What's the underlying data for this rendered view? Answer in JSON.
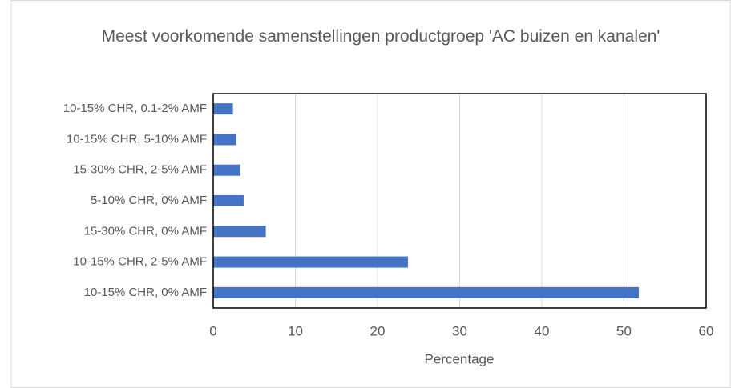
{
  "chart_data": {
    "type": "bar",
    "orientation": "horizontal",
    "title": "Meest voorkomende samenstellingen productgroep 'AC buizen en kanalen'",
    "x_label": "Percentage",
    "categories": [
      "10-15% CHR, 0.1-2% AMF",
      "10-15% CHR, 5-10% AMF",
      "15-30% CHR, 2-5% AMF",
      "5-10% CHR, 0% AMF",
      "15-30% CHR, 0% AMF",
      "10-15% CHR, 2-5% AMF",
      "10-15% CHR, 0% AMF"
    ],
    "values": [
      2.4,
      2.8,
      3.3,
      3.7,
      6.4,
      23.7,
      51.8
    ],
    "color": "#4472c4",
    "xlim": [
      0,
      60
    ],
    "xticks": [
      0,
      10,
      20,
      30,
      40,
      50,
      60
    ],
    "grid": true
  }
}
